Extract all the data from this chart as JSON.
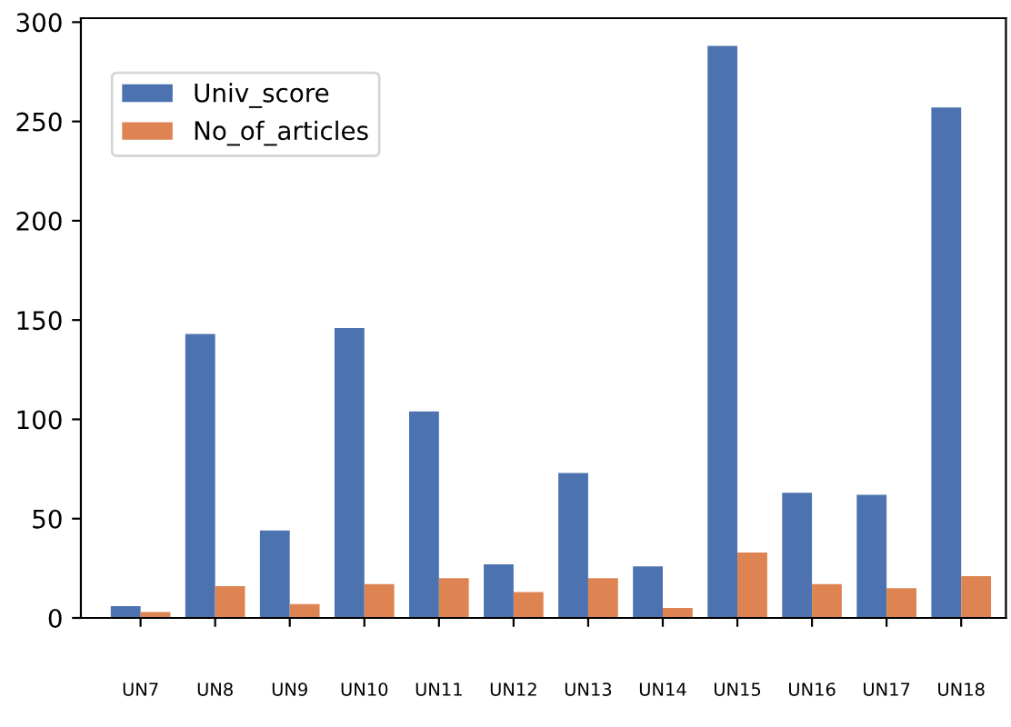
{
  "chart_data": {
    "type": "bar",
    "categories": [
      "UN7",
      "UN8",
      "UN9",
      "UN10",
      "UN11",
      "UN12",
      "UN13",
      "UN14",
      "UN15",
      "UN16",
      "UN17",
      "UN18"
    ],
    "series": [
      {
        "name": "Univ_score",
        "color": "#4c72b0",
        "values": [
          6,
          143,
          44,
          146,
          104,
          27,
          73,
          26,
          288,
          63,
          62,
          257
        ]
      },
      {
        "name": "No_of_articles",
        "color": "#dd8452",
        "values": [
          3,
          16,
          7,
          17,
          20,
          13,
          20,
          5,
          33,
          17,
          15,
          21
        ]
      }
    ],
    "ylim": [
      0,
      302
    ],
    "yticks": [
      0,
      50,
      100,
      150,
      200,
      250,
      300
    ],
    "grid": false,
    "legend": "top left"
  }
}
